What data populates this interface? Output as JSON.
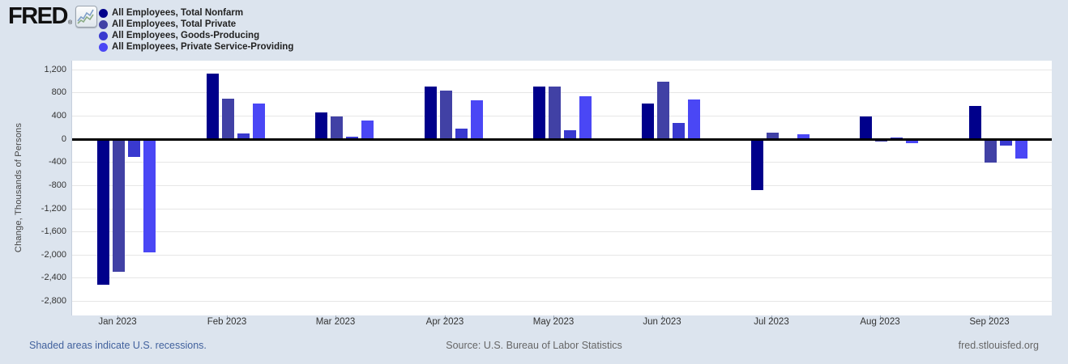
{
  "header": {
    "logo_text": "FRED",
    "logo_reg": "®",
    "legend": [
      {
        "label": "All Employees, Total Nonfarm",
        "color": "#00008b"
      },
      {
        "label": "All Employees, Total Private",
        "color": "#4141a5"
      },
      {
        "label": "All Employees, Goods-Producing",
        "color": "#3939cf"
      },
      {
        "label": "All Employees, Private Service-Providing",
        "color": "#4a47f5"
      }
    ]
  },
  "chart_data": {
    "type": "bar",
    "title": "",
    "xlabel": "",
    "ylabel": "Change, Thousands of Persons",
    "categories": [
      "Jan 2023",
      "Feb 2023",
      "Mar 2023",
      "Apr 2023",
      "May 2023",
      "Jun 2023",
      "Jul 2023",
      "Aug 2023",
      "Sep 2023"
    ],
    "series": [
      {
        "name": "All Employees, Total Nonfarm",
        "color": "#00008b",
        "values": [
          -2520,
          1130,
          450,
          910,
          900,
          610,
          -890,
          390,
          570
        ]
      },
      {
        "name": "All Employees, Total Private",
        "color": "#4141a5",
        "values": [
          -2290,
          700,
          380,
          840,
          900,
          980,
          110,
          -40,
          -410
        ]
      },
      {
        "name": "All Employees, Goods-Producing",
        "color": "#3939cf",
        "values": [
          -310,
          90,
          40,
          180,
          150,
          280,
          0,
          30,
          -110
        ]
      },
      {
        "name": "All Employees, Private Service-Providing",
        "color": "#4a47f5",
        "values": [
          -1960,
          610,
          310,
          660,
          740,
          680,
          80,
          -70,
          -340
        ]
      }
    ],
    "y_ticks": [
      1200,
      800,
      400,
      0,
      -400,
      -800,
      -1200,
      -1600,
      -2000,
      -2400,
      -2800
    ],
    "ylim": [
      -3050,
      1350
    ],
    "grid": true,
    "legend_position": "top-left",
    "zero_line": true
  },
  "footer": {
    "recession_note": "Shaded areas indicate U.S. recessions.",
    "source": "Source: U.S. Bureau of Labor Statistics",
    "site": "fred.stlouisfed.org"
  }
}
